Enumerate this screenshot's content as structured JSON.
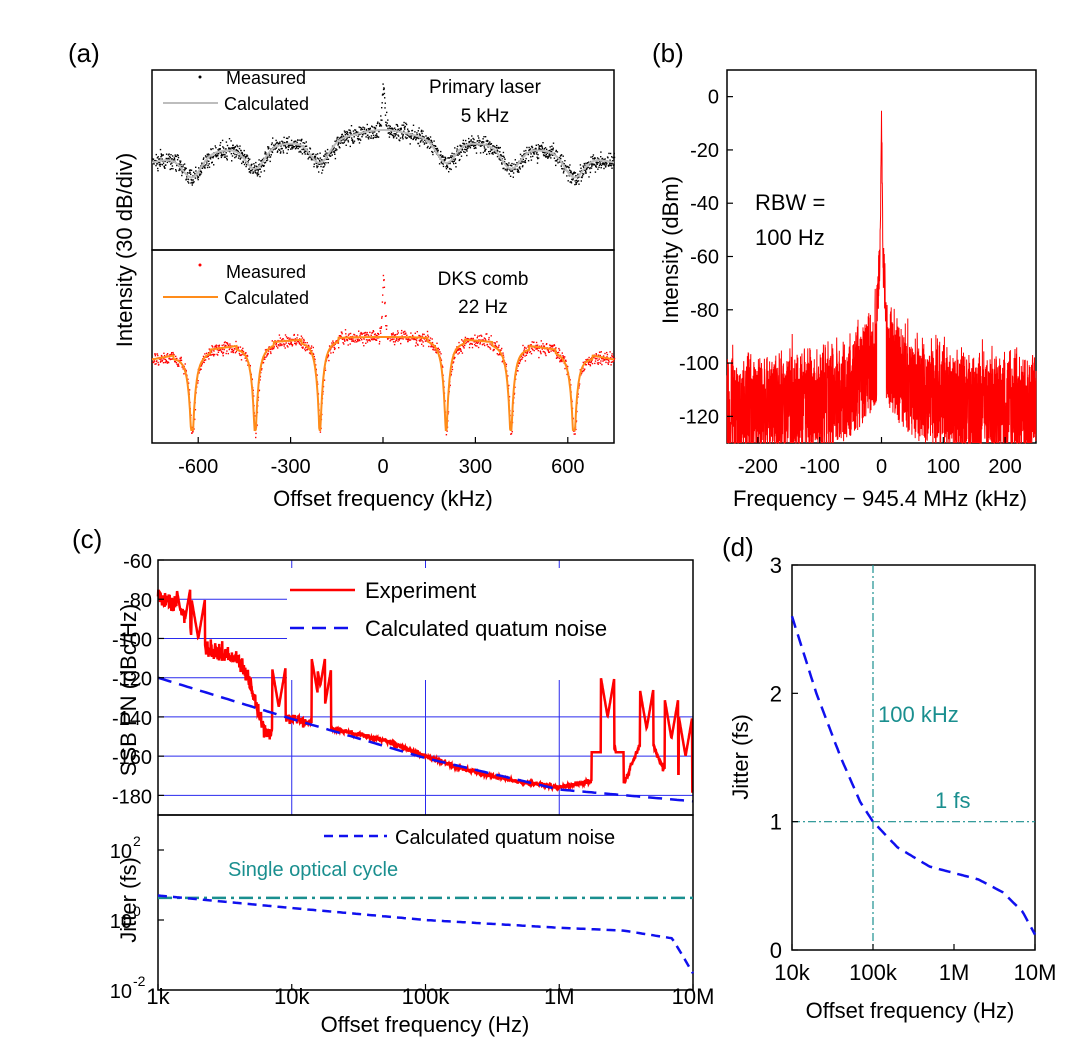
{
  "colors": {
    "black": "#000000",
    "grey": "#bdbdbd",
    "red": "#ff0000",
    "orange": "#ff8c1a",
    "blue": "#1010ee",
    "grid_blue": "#2a2aee",
    "teal": "#1a8f8f"
  },
  "chart_data": [
    {
      "panel": "(a)",
      "type": "scatter",
      "shared_ylabel": "Intensity (30 dB/div)",
      "xlabel": "Offset frequency (kHz)",
      "xlim": [
        -750,
        750
      ],
      "xticks": [
        "-600",
        "-300",
        "0",
        "300",
        "600"
      ],
      "subplots": [
        {
          "annotation": [
            "Primary laser",
            "5 kHz"
          ],
          "legend_position": "top-left",
          "series": [
            {
              "name": "Measured",
              "marker": "dots",
              "color": "#000000"
            },
            {
              "name": "Calculated",
              "line": "solid",
              "color": "#bdbdbd"
            }
          ],
          "linewidth_khz": 5,
          "fsr_dip_khz": [
            -620,
            -415,
            -205,
            205,
            415,
            620
          ],
          "peak_at_khz": 0
        },
        {
          "annotation": [
            "DKS comb",
            "22 Hz"
          ],
          "legend_position": "top-left",
          "series": [
            {
              "name": "Measured",
              "marker": "dots",
              "color": "#ff0000"
            },
            {
              "name": "Calculated",
              "line": "solid",
              "color": "#ff8c1a"
            }
          ],
          "linewidth_hz": 22,
          "fsr_dip_khz": [
            -620,
            -415,
            -205,
            205,
            415,
            620
          ],
          "peak_at_khz": 0
        }
      ]
    },
    {
      "panel": "(b)",
      "type": "line",
      "xlabel": "Frequency − 945.4 MHz (kHz)",
      "ylabel": "Intensity (dBm)",
      "xlim": [
        -250,
        250
      ],
      "ylim": [
        -130,
        10
      ],
      "xticks": [
        "-200",
        "-100",
        "0",
        "100",
        "200"
      ],
      "yticks": [
        "0",
        "-20",
        "-40",
        "-60",
        "-80",
        "-100",
        "-120"
      ],
      "annotation": [
        "RBW =",
        "100 Hz"
      ],
      "series": [
        {
          "color": "#ff0000",
          "peak_dbm": 0,
          "noise_floor_dbm": -105,
          "pedestal_dbm": -75
        }
      ]
    },
    {
      "panel": "(c)",
      "type": "line",
      "xscale": "log",
      "xlabel": "Offset frequency (Hz)",
      "xticks": [
        "1k",
        "10k",
        "100k",
        "1M",
        "10M"
      ],
      "xlim": [
        1000,
        10000000
      ],
      "upper": {
        "ylabel": "SSB PN (dBc/Hz)",
        "ylim": [
          -190,
          -60
        ],
        "yticks": [
          "-60",
          "-80",
          "-100",
          "-120",
          "-140",
          "-160",
          "-180"
        ],
        "grid": true,
        "legend_position": "top-right",
        "series": [
          {
            "name": "Experiment",
            "color": "#ff0000",
            "line": "solid",
            "x": [
              1000,
              1500,
              2000,
              3000,
              4000,
              5000,
              6000,
              7000,
              8000,
              10000,
              20000,
              50000,
              100000,
              200000,
              500000,
              1000000,
              2000000,
              2300000,
              3000000,
              4500000,
              6000000,
              6900000,
              8000000,
              10000000
            ],
            "y": [
              -78,
              -85,
              -105,
              -108,
              -112,
              -125,
              -146,
              -148,
              -140,
              -141,
              -146,
              -152,
              -160,
              -167,
              -173,
              -176,
              -172,
              -140,
              -175,
              -146,
              -167,
              -155,
              -176,
              -185
            ]
          },
          {
            "name": "Calculated quatum noise",
            "color": "#1010ee",
            "line": "dashed",
            "x": [
              1000,
              10000,
              100000,
              1000000,
              10000000
            ],
            "y": [
              -120,
              -141,
              -161,
              -177,
              -183
            ]
          }
        ]
      },
      "lower": {
        "ylabel": "Jitter (fs)",
        "yscale": "log",
        "ylim": [
          0.01,
          1000
        ],
        "yticks": [
          "10",
          "10",
          "10"
        ],
        "ytick_exponents": [
          "-2",
          "0",
          "2"
        ],
        "legend_position": "top-right",
        "annotation": "Single optical cycle",
        "series": [
          {
            "name": "Calculated quatum noise",
            "color": "#1010ee",
            "line": "dashed",
            "x": [
              1000,
              10000,
              100000,
              1000000,
              3000000,
              7000000,
              10000000
            ],
            "y": [
              5.0,
              2.2,
              1.0,
              0.6,
              0.5,
              0.3,
              0.03
            ]
          },
          {
            "name": "Single optical cycle",
            "color": "#1a8f8f",
            "line": "dash-dot",
            "x": [
              1000,
              10000000
            ],
            "y": [
              4.3,
              4.3
            ]
          }
        ]
      }
    },
    {
      "panel": "(d)",
      "type": "line",
      "xscale": "log",
      "xlabel": "Offset frequency (Hz)",
      "ylabel": "Jitter (fs)",
      "xlim": [
        10000,
        10000000
      ],
      "ylim": [
        0,
        3
      ],
      "xticks": [
        "10k",
        "100k",
        "1M",
        "10M"
      ],
      "yticks": [
        "0",
        "1",
        "2",
        "3"
      ],
      "annotations": [
        "100 kHz",
        "1 fs"
      ],
      "reference_lines": {
        "vertical_hz": 100000,
        "horizontal_fs": 1
      },
      "series": [
        {
          "color": "#1010ee",
          "line": "dashed",
          "x": [
            10000,
            20000,
            40000,
            70000,
            100000,
            200000,
            500000,
            1000000,
            2000000,
            4000000,
            7000000,
            10000000
          ],
          "y": [
            2.6,
            2.0,
            1.5,
            1.15,
            1.0,
            0.8,
            0.65,
            0.6,
            0.55,
            0.45,
            0.3,
            0.12
          ]
        }
      ]
    }
  ]
}
